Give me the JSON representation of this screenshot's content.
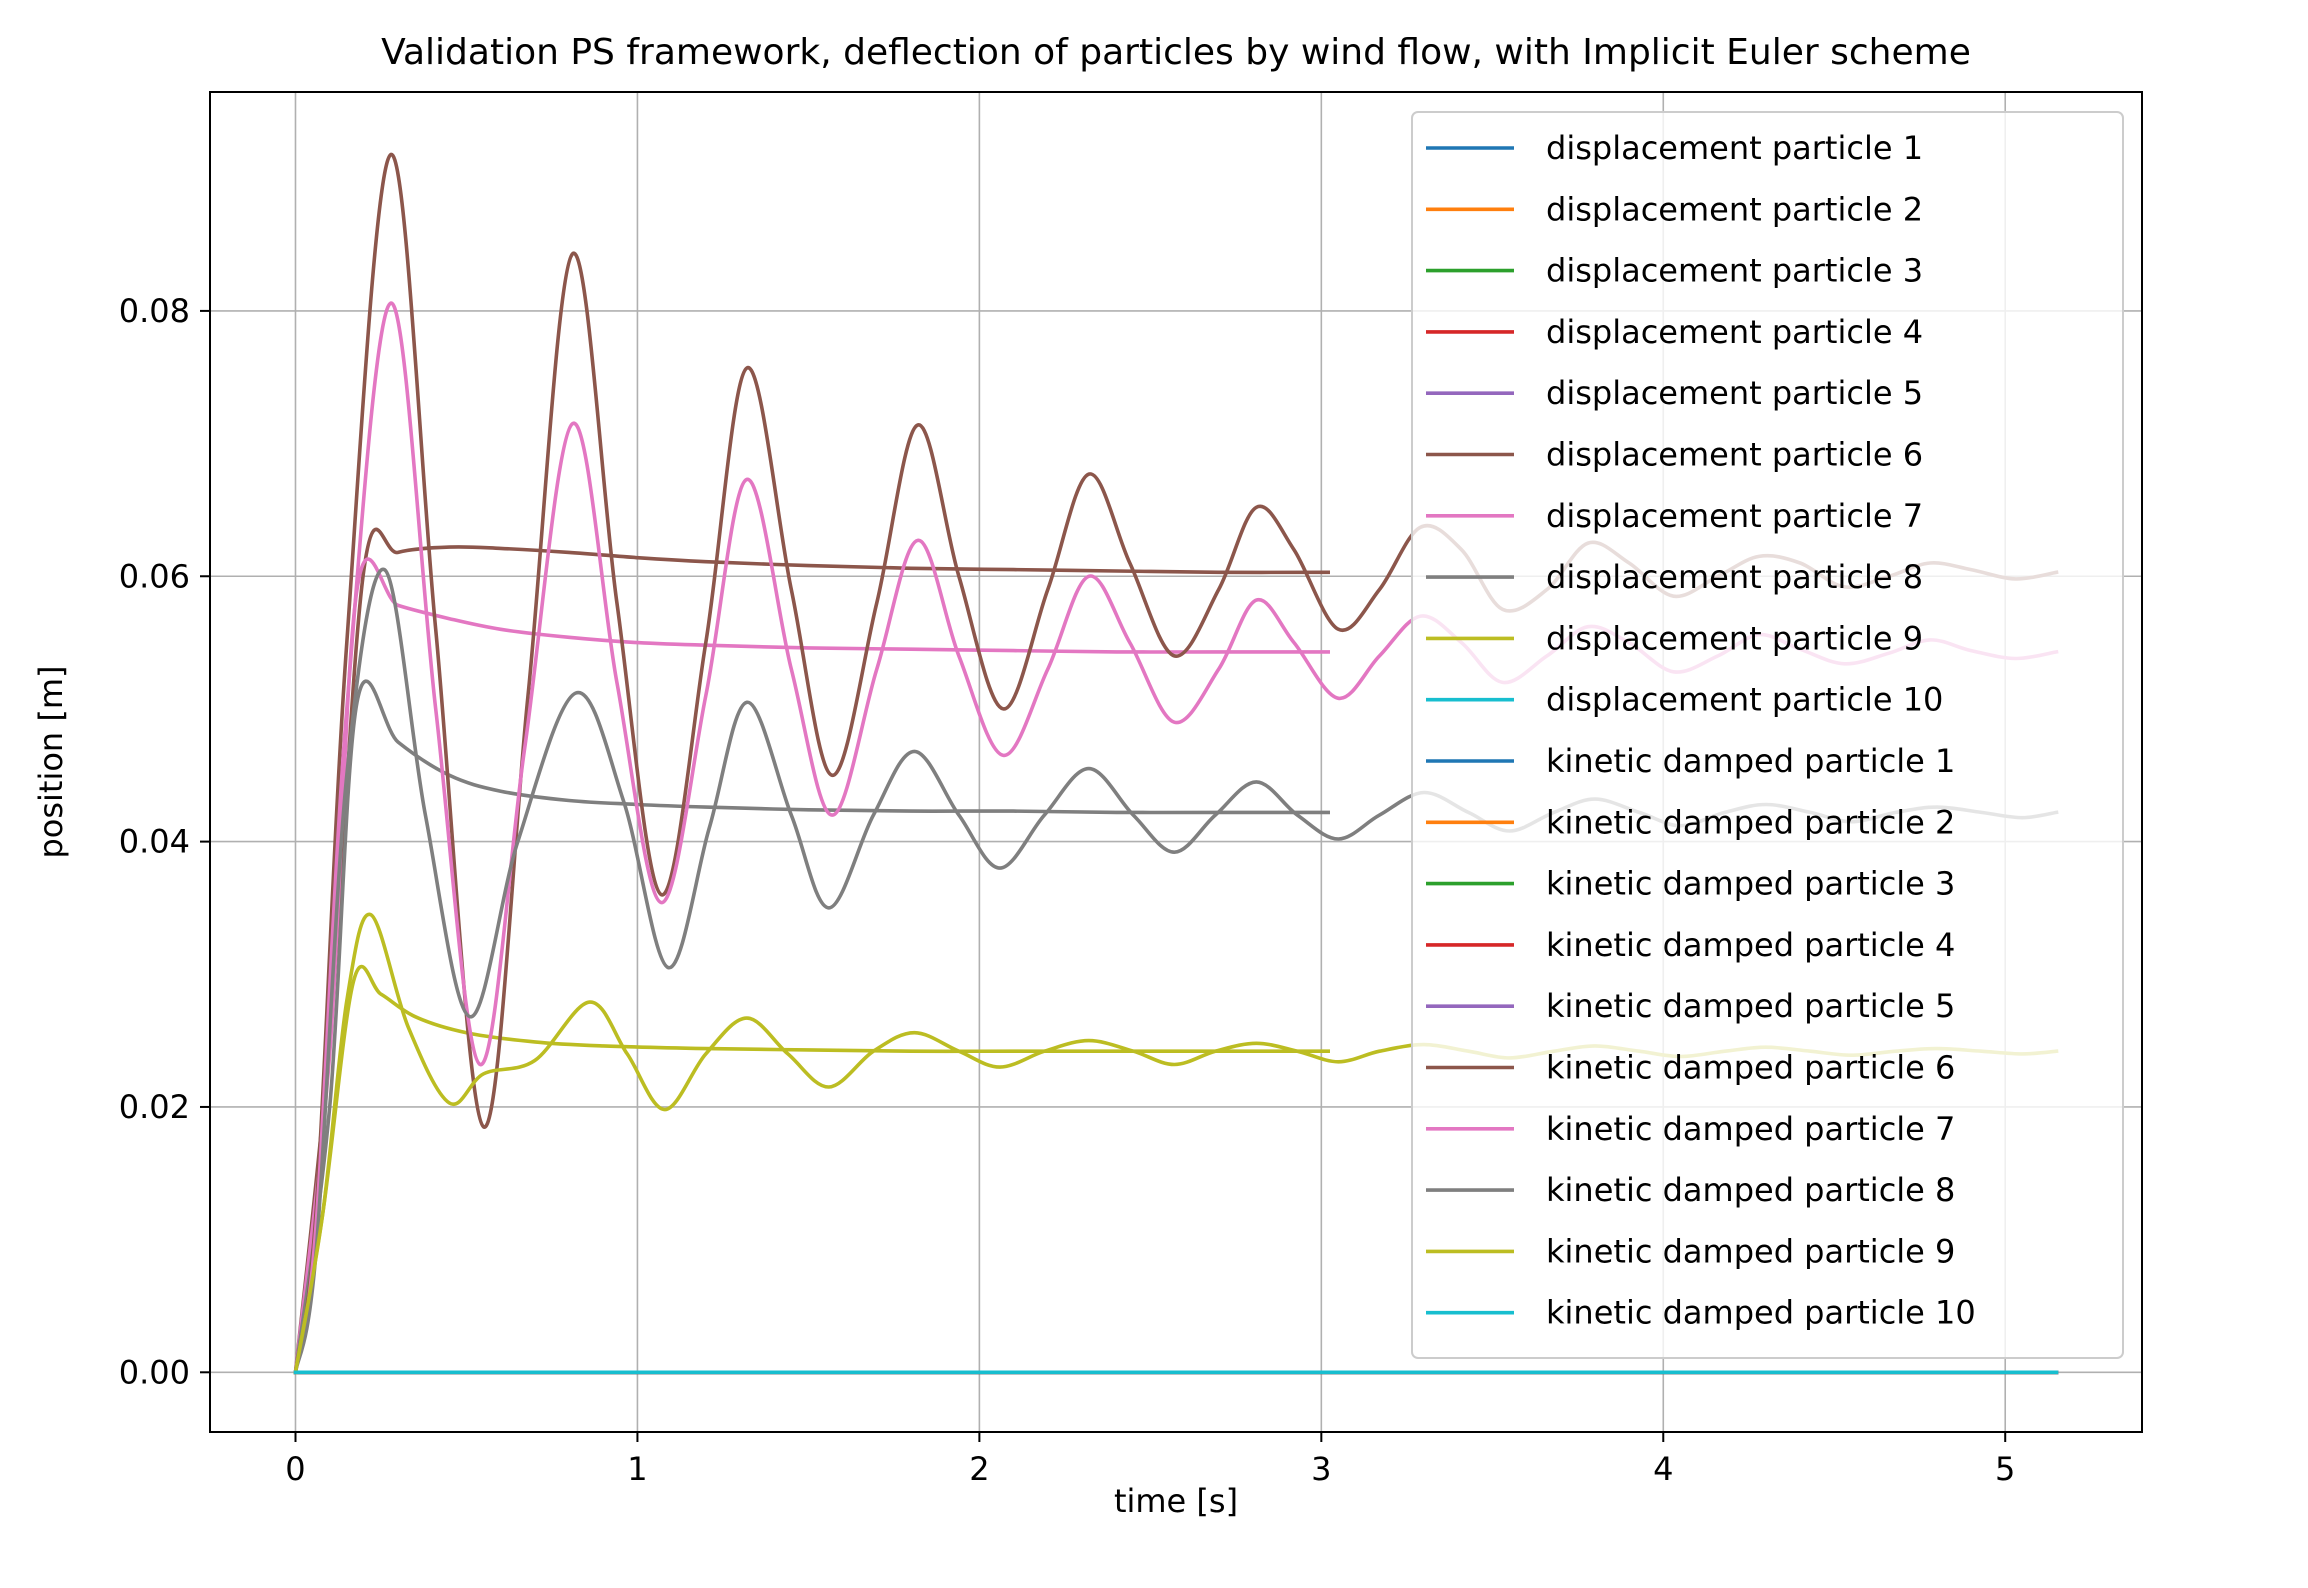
{
  "chart_data": {
    "type": "line",
    "title": "Validation PS framework, deflection of particles by wind flow, with Implicit Euler scheme",
    "xlabel": "time [s]",
    "ylabel": "position [m]",
    "xlim": [
      -0.25,
      5.4
    ],
    "ylim": [
      -0.0045,
      0.0965
    ],
    "xticks": [
      0,
      1,
      2,
      3,
      4,
      5
    ],
    "xtick_labels": [
      "0",
      "1",
      "2",
      "3",
      "4",
      "5"
    ],
    "yticks": [
      0.0,
      0.02,
      0.04,
      0.06,
      0.08
    ],
    "ytick_labels": [
      "0.00",
      "0.02",
      "0.04",
      "0.06",
      "0.08"
    ],
    "grid": true,
    "legend_position": "upper-right",
    "series": [
      {
        "name": "displacement particle 1",
        "color": "#1f77b4",
        "x": [
          0,
          5.15
        ],
        "y": [
          0,
          0
        ]
      },
      {
        "name": "displacement particle 2",
        "color": "#ff7f0e",
        "x": [
          0,
          5.15
        ],
        "y": [
          0,
          0
        ]
      },
      {
        "name": "displacement particle 3",
        "color": "#2ca02c",
        "x": [
          0,
          5.15
        ],
        "y": [
          0,
          0
        ]
      },
      {
        "name": "displacement particle 4",
        "color": "#d62728",
        "x": [
          0,
          5.15
        ],
        "y": [
          0,
          0
        ]
      },
      {
        "name": "displacement particle 5",
        "color": "#9467bd",
        "x": [
          0,
          5.15
        ],
        "y": [
          0,
          0
        ]
      },
      {
        "name": "displacement particle 6",
        "color": "#8c564b",
        "x": [
          0,
          0.1,
          0.2,
          0.3,
          0.45,
          0.6,
          0.8,
          1.0,
          1.2,
          1.5,
          1.8,
          2.1,
          2.4,
          2.7,
          3.02
        ],
        "y": [
          0,
          0.025,
          0.0605,
          0.0618,
          0.0622,
          0.0621,
          0.0618,
          0.0614,
          0.0611,
          0.0608,
          0.0606,
          0.0605,
          0.0604,
          0.0603,
          0.0603
        ]
      },
      {
        "name": "displacement particle 7",
        "color": "#e377c2",
        "x": [
          0,
          0.1,
          0.18,
          0.3,
          0.45,
          0.6,
          0.8,
          1.0,
          1.2,
          1.5,
          1.8,
          2.1,
          2.4,
          2.7,
          3.02
        ],
        "y": [
          0,
          0.024,
          0.059,
          0.0578,
          0.0568,
          0.056,
          0.0554,
          0.055,
          0.0548,
          0.0546,
          0.0545,
          0.0544,
          0.0543,
          0.0543,
          0.0543
        ]
      },
      {
        "name": "displacement particle 8",
        "color": "#7f7f7f",
        "x": [
          0,
          0.1,
          0.18,
          0.3,
          0.45,
          0.6,
          0.8,
          1.0,
          1.2,
          1.5,
          1.8,
          2.1,
          2.4,
          2.7,
          3.02
        ],
        "y": [
          0,
          0.02,
          0.0505,
          0.0475,
          0.045,
          0.0438,
          0.0431,
          0.0428,
          0.0426,
          0.0424,
          0.0423,
          0.0423,
          0.0422,
          0.0422,
          0.0422
        ]
      },
      {
        "name": "displacement particle 9",
        "color": "#bcbd22",
        "x": [
          0,
          0.08,
          0.17,
          0.25,
          0.35,
          0.5,
          0.7,
          0.9,
          1.2,
          1.5,
          1.8,
          2.1,
          2.4,
          2.7,
          3.02
        ],
        "y": [
          0,
          0.012,
          0.0295,
          0.0285,
          0.0268,
          0.0256,
          0.0249,
          0.0246,
          0.0244,
          0.0243,
          0.0242,
          0.0242,
          0.0242,
          0.0242,
          0.0242
        ]
      },
      {
        "name": "displacement particle 10",
        "color": "#17becf",
        "x": [
          0,
          5.15
        ],
        "y": [
          0,
          0
        ]
      },
      {
        "name": "kinetic damped particle 1",
        "color": "#1f77b4",
        "x": [
          0,
          5.15
        ],
        "y": [
          0,
          0
        ]
      },
      {
        "name": "kinetic damped particle 2",
        "color": "#ff7f0e",
        "x": [
          0,
          5.15
        ],
        "y": [
          0,
          0
        ]
      },
      {
        "name": "kinetic damped particle 3",
        "color": "#2ca02c",
        "x": [
          0,
          5.15
        ],
        "y": [
          0,
          0
        ]
      },
      {
        "name": "kinetic damped particle 4",
        "color": "#d62728",
        "x": [
          0,
          5.15
        ],
        "y": [
          0,
          0
        ]
      },
      {
        "name": "kinetic damped particle 5",
        "color": "#9467bd",
        "x": [
          0,
          5.15
        ],
        "y": [
          0,
          0
        ]
      },
      {
        "name": "kinetic damped particle 6",
        "color": "#8c564b",
        "x": [
          0,
          0.06,
          0.15,
          0.28,
          0.41,
          0.55,
          0.68,
          0.81,
          0.94,
          1.07,
          1.2,
          1.32,
          1.45,
          1.57,
          1.7,
          1.82,
          1.94,
          2.07,
          2.2,
          2.32,
          2.44,
          2.57,
          2.7,
          2.81,
          2.92,
          3.05,
          3.17,
          3.29,
          3.41,
          3.53,
          3.66,
          3.78,
          3.9,
          4.03,
          4.16,
          4.28,
          4.4,
          4.53,
          4.66,
          4.78,
          4.9,
          5.03,
          5.15
        ],
        "y": [
          0,
          0.012,
          0.055,
          0.0918,
          0.056,
          0.0185,
          0.051,
          0.0843,
          0.058,
          0.036,
          0.055,
          0.0757,
          0.059,
          0.045,
          0.058,
          0.0714,
          0.06,
          0.05,
          0.059,
          0.0677,
          0.061,
          0.054,
          0.059,
          0.0652,
          0.062,
          0.056,
          0.059,
          0.0637,
          0.062,
          0.0575,
          0.059,
          0.0625,
          0.061,
          0.0585,
          0.06,
          0.0615,
          0.061,
          0.0592,
          0.06,
          0.061,
          0.0605,
          0.0598,
          0.0603
        ]
      },
      {
        "name": "kinetic damped particle 7",
        "color": "#e377c2",
        "x": [
          0,
          0.06,
          0.15,
          0.28,
          0.41,
          0.54,
          0.67,
          0.81,
          0.94,
          1.07,
          1.2,
          1.32,
          1.45,
          1.57,
          1.7,
          1.82,
          1.94,
          2.07,
          2.2,
          2.32,
          2.44,
          2.57,
          2.7,
          2.81,
          2.92,
          3.05,
          3.17,
          3.29,
          3.41,
          3.53,
          3.66,
          3.78,
          3.9,
          4.03,
          4.16,
          4.28,
          4.4,
          4.53,
          4.66,
          4.78,
          4.9,
          5.03,
          5.15
        ],
        "y": [
          0,
          0.011,
          0.05,
          0.0806,
          0.05,
          0.0232,
          0.047,
          0.0715,
          0.052,
          0.0354,
          0.051,
          0.0673,
          0.053,
          0.042,
          0.053,
          0.0627,
          0.054,
          0.0465,
          0.053,
          0.06,
          0.055,
          0.049,
          0.053,
          0.0582,
          0.055,
          0.0508,
          0.054,
          0.057,
          0.055,
          0.052,
          0.054,
          0.0562,
          0.055,
          0.0528,
          0.054,
          0.0556,
          0.0545,
          0.0534,
          0.0542,
          0.0552,
          0.0544,
          0.0538,
          0.0543
        ]
      },
      {
        "name": "kinetic damped particle 8",
        "color": "#7f7f7f",
        "x": [
          0,
          0.06,
          0.15,
          0.26,
          0.38,
          0.51,
          0.65,
          0.82,
          0.96,
          1.09,
          1.21,
          1.32,
          1.45,
          1.56,
          1.69,
          1.81,
          1.94,
          2.06,
          2.19,
          2.32,
          2.45,
          2.57,
          2.69,
          2.81,
          2.93,
          3.05,
          3.17,
          3.3,
          3.43,
          3.55,
          3.68,
          3.8,
          3.93,
          4.05,
          4.18,
          4.3,
          4.43,
          4.55,
          4.68,
          4.8,
          4.93,
          5.05,
          5.15
        ],
        "y": [
          0,
          0.009,
          0.045,
          0.0605,
          0.042,
          0.0268,
          0.04,
          0.0512,
          0.043,
          0.0305,
          0.041,
          0.0505,
          0.042,
          0.035,
          0.042,
          0.0468,
          0.042,
          0.038,
          0.042,
          0.0455,
          0.042,
          0.0392,
          0.042,
          0.0445,
          0.042,
          0.0402,
          0.042,
          0.0437,
          0.0422,
          0.0408,
          0.0422,
          0.0432,
          0.0422,
          0.0412,
          0.0422,
          0.0428,
          0.0422,
          0.0415,
          0.0422,
          0.0426,
          0.0422,
          0.0418,
          0.0422
        ]
      },
      {
        "name": "kinetic damped particle 9",
        "color": "#bcbd22",
        "x": [
          0,
          0.08,
          0.15,
          0.22,
          0.33,
          0.45,
          0.55,
          0.7,
          0.86,
          0.97,
          1.08,
          1.2,
          1.32,
          1.44,
          1.56,
          1.69,
          1.81,
          1.94,
          2.06,
          2.19,
          2.32,
          2.45,
          2.57,
          2.69,
          2.81,
          2.93,
          3.05,
          3.17,
          3.3,
          3.43,
          3.55,
          3.68,
          3.8,
          3.93,
          4.05,
          4.18,
          4.3,
          4.43,
          4.55,
          4.68,
          4.8,
          4.93,
          5.05,
          5.15
        ],
        "y": [
          0,
          0.012,
          0.028,
          0.0345,
          0.026,
          0.0203,
          0.0225,
          0.0235,
          0.0279,
          0.024,
          0.0198,
          0.024,
          0.0267,
          0.024,
          0.0215,
          0.0242,
          0.0256,
          0.0242,
          0.023,
          0.0242,
          0.025,
          0.0242,
          0.0232,
          0.0242,
          0.0248,
          0.0242,
          0.0234,
          0.0242,
          0.0247,
          0.0242,
          0.0237,
          0.0242,
          0.0246,
          0.0242,
          0.0238,
          0.0242,
          0.0245,
          0.0242,
          0.0239,
          0.0242,
          0.0244,
          0.0242,
          0.024,
          0.0242
        ]
      },
      {
        "name": "kinetic damped particle 10",
        "color": "#17becf",
        "x": [
          0,
          5.15
        ],
        "y": [
          0,
          0
        ]
      }
    ]
  }
}
